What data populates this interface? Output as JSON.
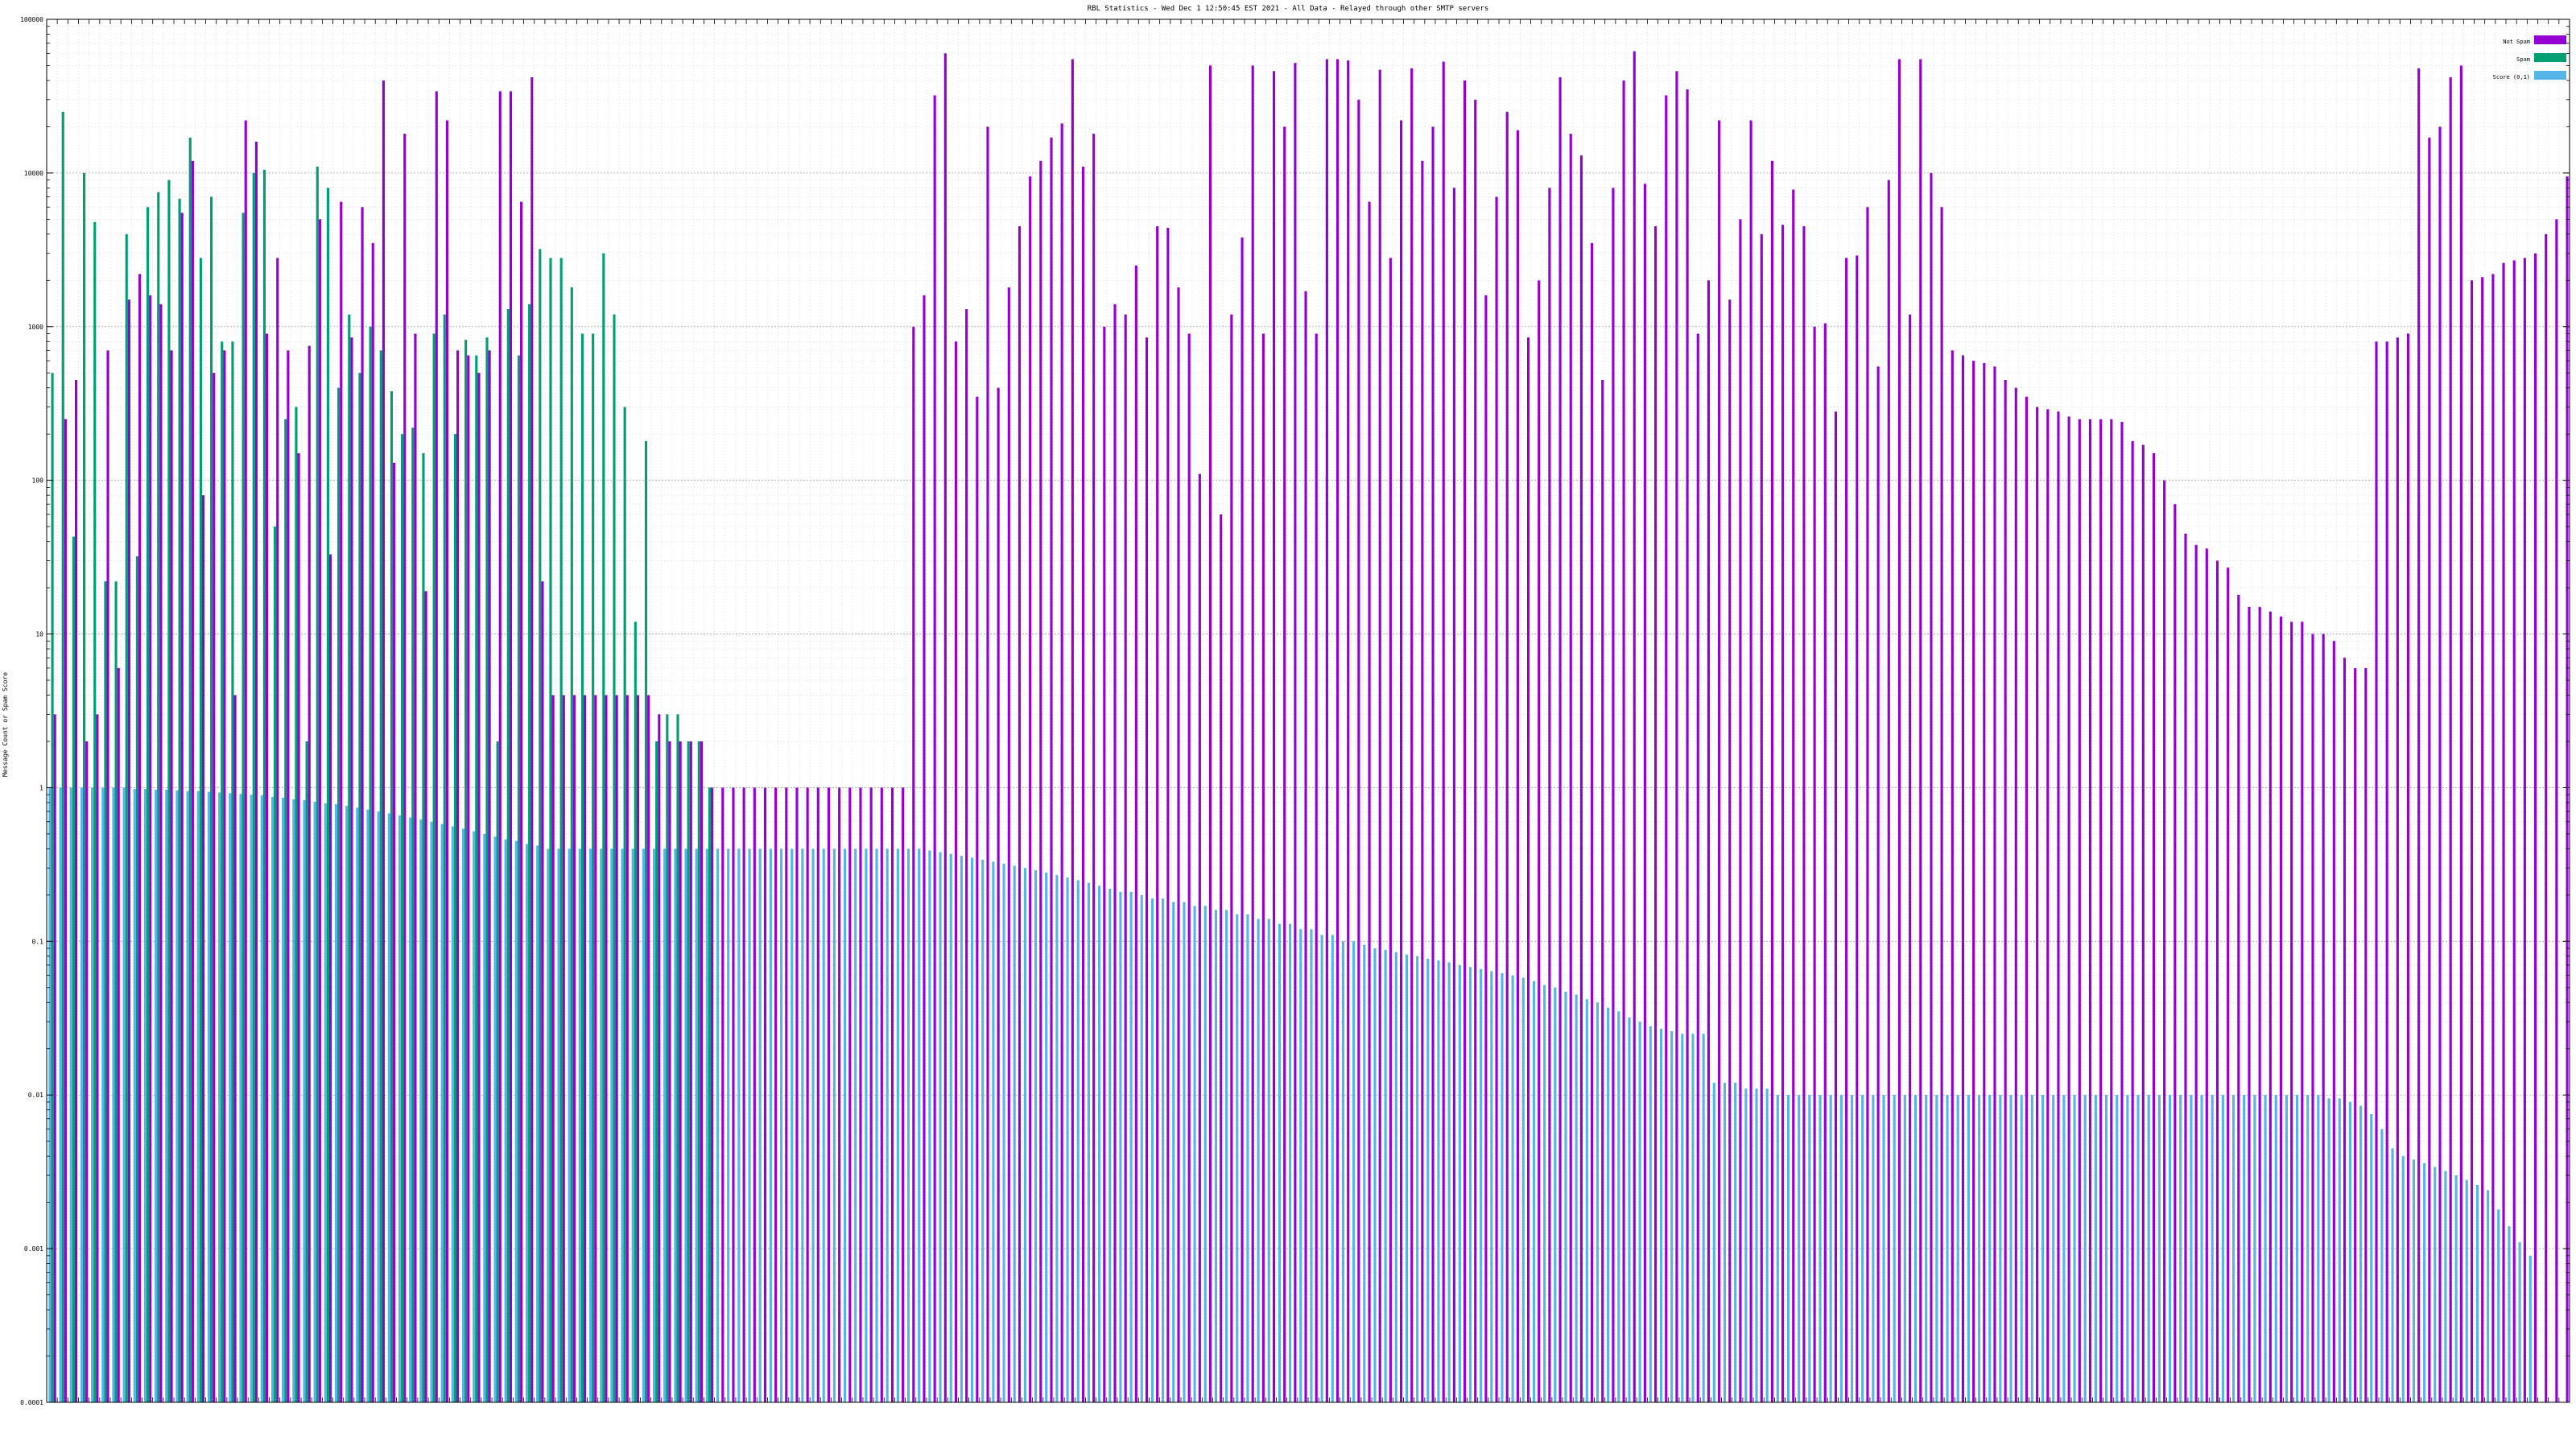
{
  "chart_data": {
    "type": "bar",
    "title": "RBL Statistics - Wed Dec  1 12:50:45 EST 2021 - All Data - Relayed through other SMTP servers",
    "xlabel": "",
    "ylabel": "Message Count or Spam Score",
    "yscale": "log",
    "ylim": [
      0.0001,
      100000
    ],
    "y_tick_labels": [
      "0.0001",
      "0.001",
      "0.01",
      "0.1",
      "1",
      "10",
      "100",
      "1000",
      "10000",
      "100000"
    ],
    "grid": true,
    "legend_position": "top-right",
    "series": [
      {
        "name": "Not Spam",
        "color": "#9400d3",
        "values": [
          3,
          250,
          450,
          2,
          3,
          700,
          6,
          1500,
          2200,
          1600,
          1400,
          700,
          5500,
          12000,
          80,
          500,
          700,
          4,
          22000,
          16000,
          900,
          2800,
          700,
          150,
          750,
          5000,
          33,
          6500,
          850,
          6000,
          3500,
          40000,
          130,
          18000,
          900,
          19,
          34000,
          22000,
          700,
          650,
          500,
          700,
          34000,
          34000,
          6500,
          42000,
          22,
          4,
          4,
          4,
          4,
          4,
          4,
          4,
          4,
          4,
          4,
          3,
          2,
          2,
          2,
          2,
          1,
          1,
          1,
          1,
          1,
          1,
          1,
          1,
          1,
          1,
          1,
          1,
          1,
          1,
          1,
          1,
          1,
          1,
          1,
          1000,
          1600,
          32000,
          60000,
          800,
          1300,
          350,
          20000,
          400,
          1800,
          4500,
          9500,
          12000,
          17000,
          21000,
          55000,
          11000,
          18000,
          1000,
          1400,
          1200,
          2500,
          850,
          4500,
          4400,
          1800,
          900,
          110,
          50000,
          60,
          1200,
          3800,
          50000,
          900,
          46000,
          20000,
          52000,
          1700,
          900,
          55000,
          55000,
          54000,
          30000,
          6500,
          47000,
          2800,
          22000,
          48000,
          12000,
          20000,
          53000,
          8000,
          40000,
          30000,
          1600,
          7000,
          25000,
          19000,
          850,
          2000,
          8000,
          42000,
          18000,
          13000,
          3500,
          450,
          8000,
          40000,
          62000,
          8500,
          4500,
          32000,
          46000,
          35000,
          900,
          2000,
          22000,
          1500,
          5000,
          22000,
          4000,
          12000,
          4600,
          7800,
          4500,
          1000,
          1050,
          280,
          2800,
          2900,
          6000,
          550,
          9000,
          55000,
          1200,
          55000,
          10000,
          6000,
          700,
          650,
          600,
          580,
          550,
          450,
          400,
          350,
          300,
          290,
          280,
          260,
          250,
          250,
          250,
          250,
          240,
          180,
          170,
          150,
          100,
          70,
          45,
          38,
          36,
          30,
          27,
          18,
          15,
          15,
          14,
          13,
          12,
          12,
          10,
          10,
          9,
          7,
          6,
          6,
          800,
          800,
          850,
          900,
          48000,
          17000,
          20000,
          42000,
          50000,
          2000,
          2100,
          2200,
          2600,
          2700,
          2800,
          3000,
          4000,
          5000,
          9500
        ]
      },
      {
        "name": "Spam",
        "color": "#009e73",
        "values": [
          500,
          25000,
          43,
          10000,
          4800,
          22,
          22,
          4000,
          32,
          6000,
          7500,
          9000,
          6800,
          17000,
          2800,
          7000,
          800,
          800,
          5500,
          10000,
          10500,
          50,
          250,
          300,
          2,
          11000,
          8000,
          400,
          1200,
          500,
          1000,
          700,
          380,
          200,
          220,
          150,
          900,
          1200,
          200,
          820,
          650,
          850,
          2,
          1300,
          650,
          1400,
          3200,
          2800,
          2800,
          1800,
          900,
          900,
          3000,
          1200,
          300,
          12,
          180,
          2,
          3,
          3,
          2,
          2,
          1
        ]
      },
      {
        "name": "Score (0,1)",
        "color": "#56b4e9",
        "values": [
          1,
          1,
          1,
          1,
          1,
          1,
          1,
          1,
          0.98,
          0.98,
          0.97,
          0.97,
          0.96,
          0.95,
          0.95,
          0.94,
          0.93,
          0.92,
          0.91,
          0.9,
          0.89,
          0.87,
          0.86,
          0.84,
          0.83,
          0.81,
          0.79,
          0.78,
          0.76,
          0.74,
          0.72,
          0.7,
          0.68,
          0.66,
          0.64,
          0.62,
          0.6,
          0.58,
          0.56,
          0.54,
          0.52,
          0.5,
          0.48,
          0.46,
          0.45,
          0.43,
          0.42,
          0.4,
          0.4,
          0.4,
          0.4,
          0.4,
          0.4,
          0.4,
          0.4,
          0.4,
          0.4,
          0.4,
          0.4,
          0.4,
          0.4,
          0.4,
          0.4,
          0.4,
          0.4,
          0.4,
          0.4,
          0.4,
          0.4,
          0.4,
          0.4,
          0.4,
          0.4,
          0.4,
          0.4,
          0.4,
          0.4,
          0.4,
          0.4,
          0.4,
          0.4,
          0.4,
          0.4,
          0.39,
          0.38,
          0.37,
          0.36,
          0.35,
          0.34,
          0.33,
          0.32,
          0.31,
          0.3,
          0.29,
          0.28,
          0.27,
          0.26,
          0.25,
          0.24,
          0.23,
          0.22,
          0.21,
          0.21,
          0.2,
          0.19,
          0.19,
          0.18,
          0.18,
          0.17,
          0.17,
          0.16,
          0.16,
          0.15,
          0.15,
          0.14,
          0.14,
          0.13,
          0.13,
          0.12,
          0.12,
          0.11,
          0.11,
          0.1,
          0.1,
          0.095,
          0.09,
          0.088,
          0.085,
          0.082,
          0.08,
          0.077,
          0.075,
          0.073,
          0.07,
          0.068,
          0.066,
          0.064,
          0.062,
          0.06,
          0.058,
          0.055,
          0.052,
          0.05,
          0.047,
          0.045,
          0.042,
          0.04,
          0.037,
          0.035,
          0.032,
          0.03,
          0.028,
          0.027,
          0.026,
          0.025,
          0.025,
          0.025,
          0.012,
          0.012,
          0.012,
          0.011,
          0.011,
          0.011,
          0.01,
          0.01,
          0.01,
          0.01,
          0.01,
          0.01,
          0.01,
          0.01,
          0.01,
          0.01,
          0.01,
          0.01,
          0.01,
          0.01,
          0.01,
          0.01,
          0.01,
          0.01,
          0.01,
          0.01,
          0.01,
          0.01,
          0.01,
          0.01,
          0.01,
          0.01,
          0.01,
          0.01,
          0.01,
          0.01,
          0.01,
          0.01,
          0.01,
          0.01,
          0.01,
          0.01,
          0.01,
          0.01,
          0.01,
          0.01,
          0.01,
          0.01,
          0.01,
          0.01,
          0.01,
          0.01,
          0.01,
          0.01,
          0.01,
          0.01,
          0.01,
          0.01,
          0.0095,
          0.0095,
          0.009,
          0.0085,
          0.0075,
          0.006,
          0.0045,
          0.004,
          0.0038,
          0.0036,
          0.0034,
          0.0032,
          0.003,
          0.0028,
          0.0026,
          0.0024,
          0.0018,
          0.0014,
          0.0011,
          0.0009
        ]
      }
    ]
  },
  "colors": {
    "not_spam": "#9400d3",
    "spam": "#009e73",
    "score": "#56b4e9",
    "grid": "#a0a0a0"
  }
}
